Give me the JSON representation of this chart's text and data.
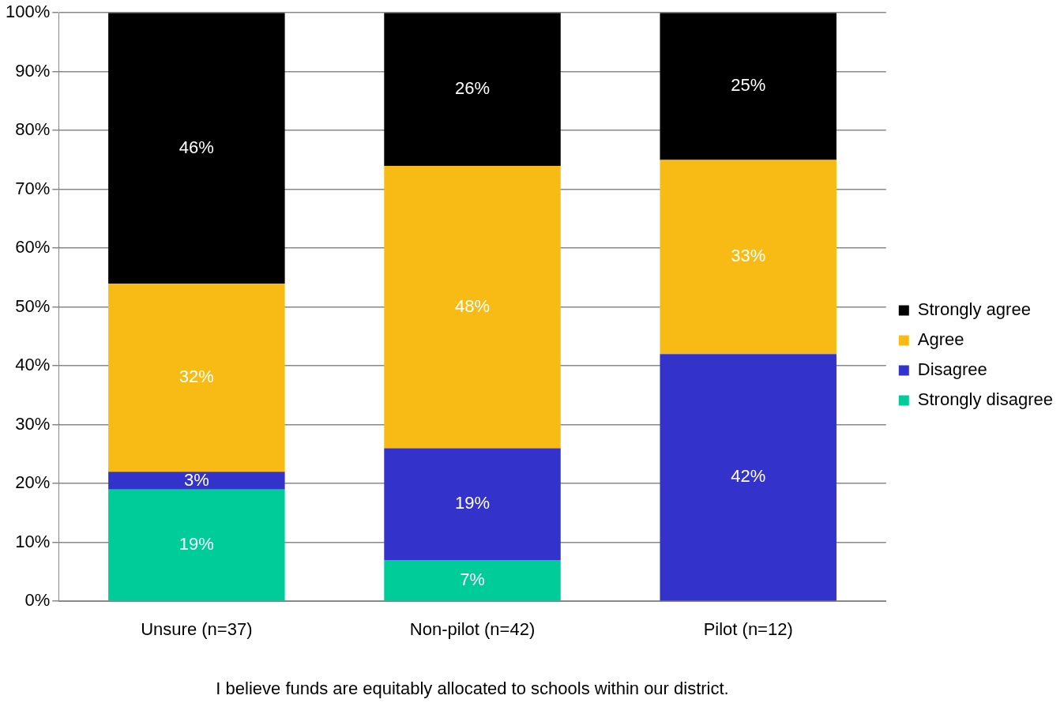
{
  "chart_data": {
    "type": "bar",
    "stacked": true,
    "xlabel": "I believe funds are equitably allocated to schools within our district.",
    "categories": [
      "Unsure (n=37)",
      "Non-pilot (n=42)",
      "Pilot (n=12)"
    ],
    "series": [
      {
        "name": "Strongly disagree",
        "color": "#00cc99",
        "values": [
          19,
          7,
          0
        ],
        "value_labels": [
          "19%",
          "7%",
          null
        ]
      },
      {
        "name": "Disagree",
        "color": "#3333cc",
        "values": [
          3,
          19,
          42
        ],
        "value_labels": [
          "3%",
          "19%",
          "42%"
        ]
      },
      {
        "name": "Agree",
        "color": "#f8bb16",
        "values": [
          32,
          48,
          33
        ],
        "value_labels": [
          "32%",
          "48%",
          "33%"
        ]
      },
      {
        "name": "Strongly agree",
        "color": "#000000",
        "values": [
          46,
          26,
          25
        ],
        "value_labels": [
          "46%",
          "26%",
          "25%"
        ]
      }
    ],
    "ylim": [
      0,
      100
    ],
    "yticks": [
      {
        "value": 0,
        "label": "0%"
      },
      {
        "value": 10,
        "label": "10%"
      },
      {
        "value": 20,
        "label": "20%"
      },
      {
        "value": 30,
        "label": "30%"
      },
      {
        "value": 40,
        "label": "40%"
      },
      {
        "value": 50,
        "label": "50%"
      },
      {
        "value": 60,
        "label": "60%"
      },
      {
        "value": 70,
        "label": "70%"
      },
      {
        "value": 80,
        "label": "80%"
      },
      {
        "value": 90,
        "label": "90%"
      },
      {
        "value": 100,
        "label": "100%"
      }
    ],
    "grid": "y",
    "legend": "right"
  }
}
